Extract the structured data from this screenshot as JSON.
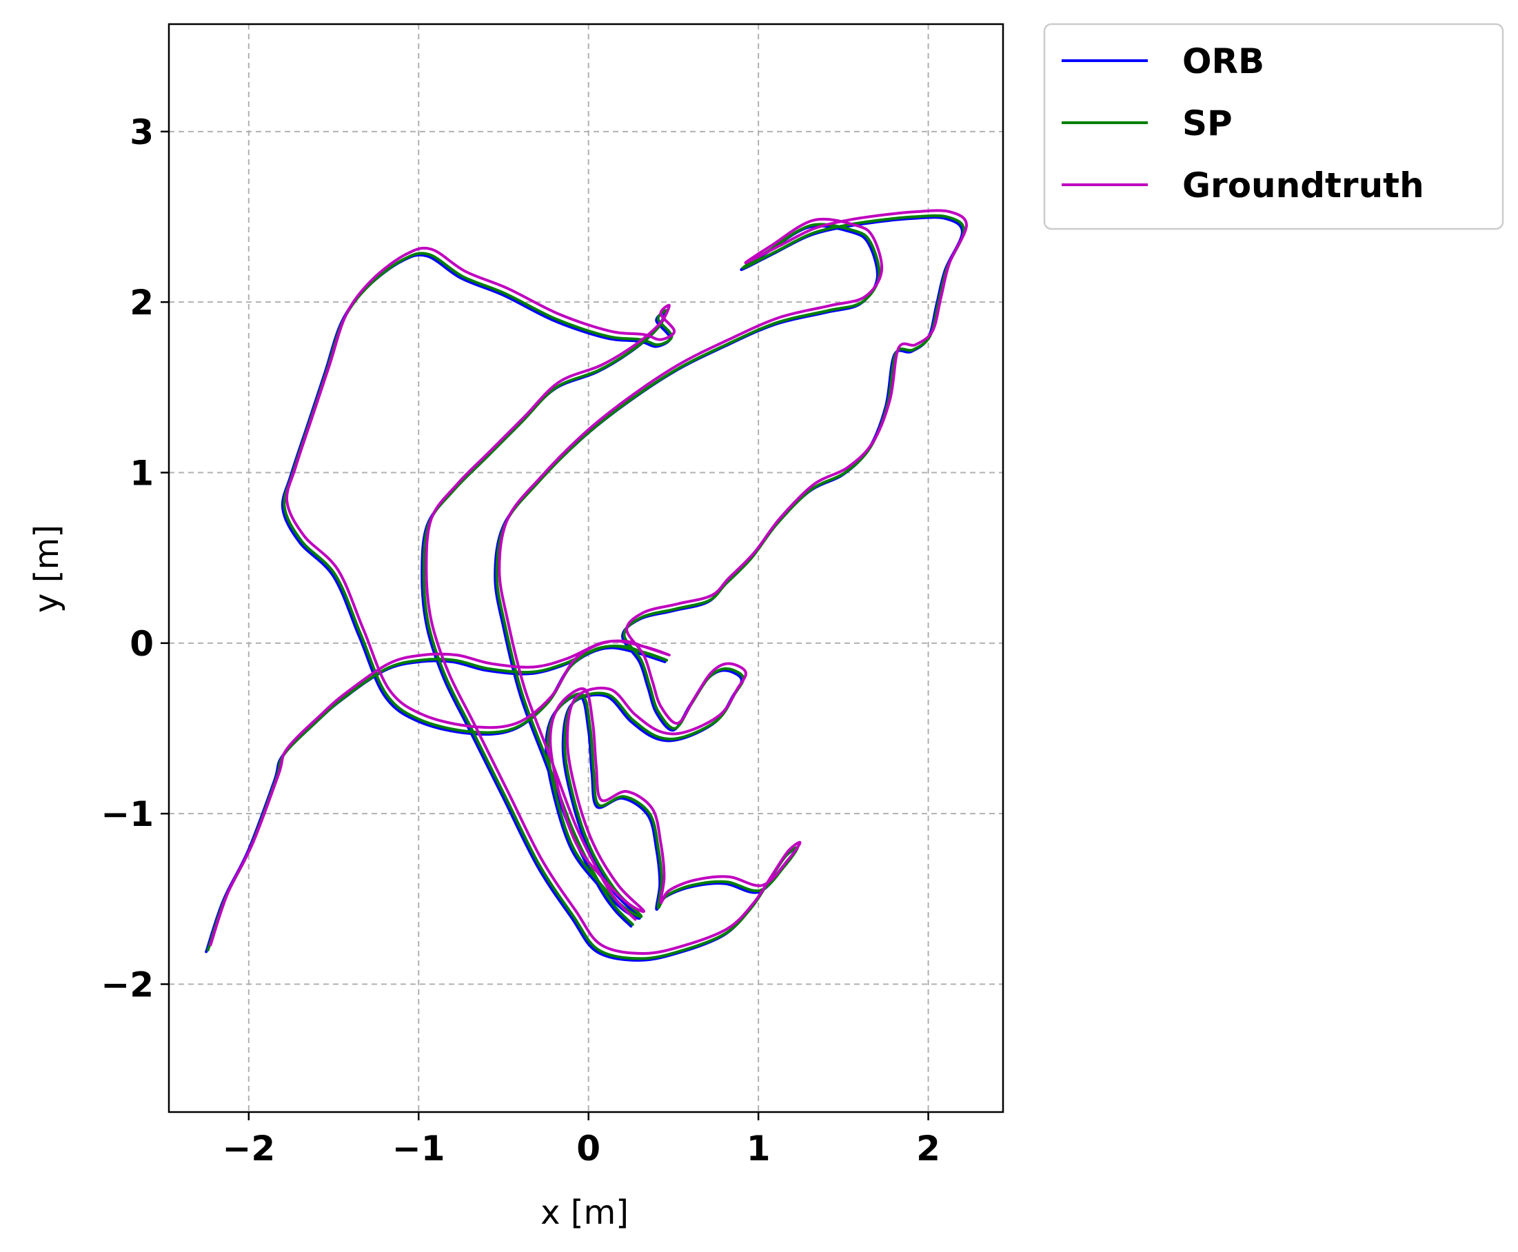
{
  "chart_data": {
    "type": "line",
    "title": "",
    "xlabel": "x [m]",
    "ylabel": "y [m]",
    "xlim": [
      -2.47,
      2.44
    ],
    "ylim": [
      -2.75,
      3.63
    ],
    "xticks": [
      {
        "value": -2,
        "label": "−2"
      },
      {
        "value": -1,
        "label": "−1"
      },
      {
        "value": 0,
        "label": "0"
      },
      {
        "value": 1,
        "label": "1"
      },
      {
        "value": 2,
        "label": "2"
      }
    ],
    "yticks": [
      {
        "value": -2,
        "label": "−2"
      },
      {
        "value": -1,
        "label": "−1"
      },
      {
        "value": 0,
        "label": "0"
      },
      {
        "value": 1,
        "label": "1"
      },
      {
        "value": 2,
        "label": "2"
      },
      {
        "value": 3,
        "label": "3"
      }
    ],
    "grid": true,
    "legend_position": "outside-top-right",
    "path": [
      [
        -2.25,
        -1.8
      ],
      [
        -2.15,
        -1.5
      ],
      [
        -2.0,
        -1.2
      ],
      [
        -1.85,
        -0.8
      ],
      [
        -1.8,
        -0.65
      ],
      [
        -1.6,
        -0.45
      ],
      [
        -1.45,
        -0.32
      ],
      [
        -1.2,
        -0.15
      ],
      [
        -1.0,
        -0.1
      ],
      [
        -0.8,
        -0.1
      ],
      [
        -0.6,
        -0.15
      ],
      [
        -0.35,
        -0.17
      ],
      [
        -0.15,
        -0.12
      ],
      [
        0.05,
        -0.03
      ],
      [
        0.2,
        -0.02
      ],
      [
        0.3,
        -0.05
      ],
      [
        0.45,
        -0.1
      ],
      [
        0.3,
        -0.05
      ],
      [
        0.1,
        -0.02
      ],
      [
        -0.1,
        -0.12
      ],
      [
        -0.25,
        -0.35
      ],
      [
        -0.45,
        -0.5
      ],
      [
        -0.7,
        -0.52
      ],
      [
        -1.0,
        -0.45
      ],
      [
        -1.2,
        -0.3
      ],
      [
        -1.35,
        0.05
      ],
      [
        -1.5,
        0.4
      ],
      [
        -1.7,
        0.6
      ],
      [
        -1.8,
        0.8
      ],
      [
        -1.75,
        1.0
      ],
      [
        -1.65,
        1.3
      ],
      [
        -1.55,
        1.6
      ],
      [
        -1.45,
        1.9
      ],
      [
        -1.3,
        2.1
      ],
      [
        -1.1,
        2.25
      ],
      [
        -0.95,
        2.28
      ],
      [
        -0.75,
        2.15
      ],
      [
        -0.5,
        2.05
      ],
      [
        -0.2,
        1.9
      ],
      [
        0.1,
        1.8
      ],
      [
        0.3,
        1.78
      ],
      [
        0.4,
        1.75
      ],
      [
        0.48,
        1.8
      ],
      [
        0.4,
        1.9
      ],
      [
        0.45,
        1.95
      ],
      [
        0.4,
        1.85
      ],
      [
        0.25,
        1.72
      ],
      [
        0.05,
        1.6
      ],
      [
        -0.2,
        1.5
      ],
      [
        -0.4,
        1.3
      ],
      [
        -0.6,
        1.1
      ],
      [
        -0.8,
        0.9
      ],
      [
        -0.95,
        0.7
      ],
      [
        -0.98,
        0.4
      ],
      [
        -0.95,
        0.1
      ],
      [
        -0.85,
        -0.2
      ],
      [
        -0.7,
        -0.5
      ],
      [
        -0.5,
        -0.9
      ],
      [
        -0.3,
        -1.3
      ],
      [
        -0.1,
        -1.6
      ],
      [
        0.05,
        -1.8
      ],
      [
        0.3,
        -1.85
      ],
      [
        0.55,
        -1.8
      ],
      [
        0.8,
        -1.7
      ],
      [
        0.95,
        -1.55
      ],
      [
        1.05,
        -1.4
      ],
      [
        1.15,
        -1.25
      ],
      [
        1.22,
        -1.2
      ],
      [
        1.15,
        -1.3
      ],
      [
        1.0,
        -1.45
      ],
      [
        0.8,
        -1.4
      ],
      [
        0.6,
        -1.42
      ],
      [
        0.45,
        -1.48
      ],
      [
        0.4,
        -1.55
      ],
      [
        0.42,
        -1.4
      ],
      [
        0.4,
        -1.2
      ],
      [
        0.35,
        -1.0
      ],
      [
        0.2,
        -0.9
      ],
      [
        0.05,
        -0.95
      ],
      [
        0.02,
        -0.75
      ],
      [
        0.0,
        -0.5
      ],
      [
        -0.05,
        -0.3
      ],
      [
        -0.2,
        -0.4
      ],
      [
        -0.25,
        -0.6
      ],
      [
        -0.2,
        -0.9
      ],
      [
        -0.1,
        -1.2
      ],
      [
        0.05,
        -1.4
      ],
      [
        0.2,
        -1.55
      ],
      [
        0.3,
        -1.6
      ],
      [
        0.15,
        -1.45
      ],
      [
        0.0,
        -1.2
      ],
      [
        -0.1,
        -0.9
      ],
      [
        -0.15,
        -0.6
      ],
      [
        -0.1,
        -0.35
      ],
      [
        0.1,
        -0.3
      ],
      [
        0.25,
        -0.45
      ],
      [
        0.4,
        -0.55
      ],
      [
        0.55,
        -0.55
      ],
      [
        0.75,
        -0.45
      ],
      [
        0.85,
        -0.3
      ],
      [
        0.9,
        -0.2
      ],
      [
        0.8,
        -0.15
      ],
      [
        0.7,
        -0.2
      ],
      [
        0.6,
        -0.35
      ],
      [
        0.5,
        -0.5
      ],
      [
        0.4,
        -0.4
      ],
      [
        0.35,
        -0.25
      ],
      [
        0.3,
        -0.1
      ],
      [
        0.2,
        0.05
      ],
      [
        0.3,
        0.15
      ],
      [
        0.5,
        0.2
      ],
      [
        0.7,
        0.25
      ],
      [
        0.8,
        0.35
      ],
      [
        0.95,
        0.5
      ],
      [
        1.1,
        0.7
      ],
      [
        1.3,
        0.9
      ],
      [
        1.5,
        1.0
      ],
      [
        1.65,
        1.15
      ],
      [
        1.75,
        1.4
      ],
      [
        1.8,
        1.7
      ],
      [
        1.9,
        1.72
      ],
      [
        2.0,
        1.8
      ],
      [
        2.05,
        2.0
      ],
      [
        2.1,
        2.2
      ],
      [
        2.2,
        2.42
      ],
      [
        2.1,
        2.5
      ],
      [
        1.9,
        2.5
      ],
      [
        1.7,
        2.48
      ],
      [
        1.5,
        2.45
      ],
      [
        1.3,
        2.4
      ],
      [
        1.1,
        2.3
      ],
      [
        0.9,
        2.2
      ],
      [
        1.05,
        2.3
      ],
      [
        1.3,
        2.45
      ],
      [
        1.55,
        2.42
      ],
      [
        1.65,
        2.35
      ],
      [
        1.7,
        2.15
      ],
      [
        1.6,
        2.0
      ],
      [
        1.4,
        1.95
      ],
      [
        1.1,
        1.88
      ],
      [
        0.8,
        1.75
      ],
      [
        0.5,
        1.6
      ],
      [
        0.2,
        1.4
      ],
      [
        -0.05,
        1.2
      ],
      [
        -0.3,
        0.95
      ],
      [
        -0.5,
        0.7
      ],
      [
        -0.55,
        0.4
      ],
      [
        -0.5,
        0.1
      ],
      [
        -0.4,
        -0.3
      ],
      [
        -0.25,
        -0.7
      ],
      [
        -0.1,
        -1.1
      ],
      [
        0.05,
        -1.4
      ],
      [
        0.15,
        -1.55
      ],
      [
        0.25,
        -1.65
      ]
    ],
    "series": [
      {
        "name": "ORB",
        "color": "#0000ff",
        "offset": [
          0.0,
          -0.01
        ]
      },
      {
        "name": "SP",
        "color": "#007f00",
        "offset": [
          0.01,
          0.0
        ]
      },
      {
        "name": "Groundtruth",
        "color": "#bf00bf",
        "offset": [
          0.025,
          0.03
        ]
      }
    ]
  }
}
